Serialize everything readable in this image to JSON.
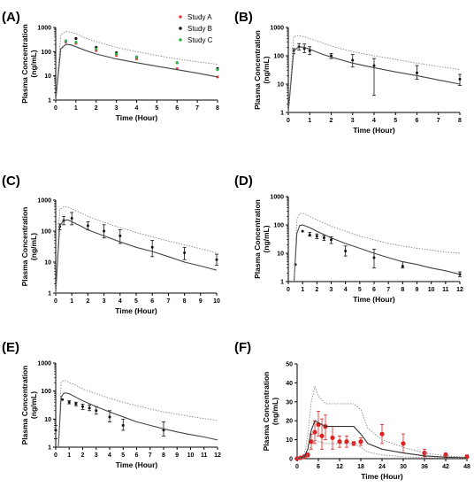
{
  "chart_data": [
    {
      "panel": "(A)",
      "type": "line",
      "xlabel": "Time (Hour)",
      "ylabel": [
        "Plasma Concentration",
        "(ng/mL)"
      ],
      "yscale": "log",
      "xlim": [
        0,
        8
      ],
      "ylim": [
        1,
        1000
      ],
      "xticks": [
        "0",
        "1",
        "2",
        "3",
        "4",
        "5",
        "6",
        "7",
        "8"
      ],
      "yticks": [
        "1",
        "10",
        "100",
        "1000"
      ],
      "legend": {
        "position": "top-right",
        "entries": [
          {
            "name": "Study A",
            "color": "#e8413c"
          },
          {
            "name": "Study B",
            "color": "#111111"
          },
          {
            "name": "Study C",
            "color": "#2db84a"
          }
        ]
      },
      "series": [
        {
          "name": "Study A",
          "kind": "points",
          "color": "#e8413c",
          "x": [
            0.5,
            1,
            2,
            3,
            4,
            6,
            8
          ],
          "y": [
            250,
            220,
            110,
            70,
            50,
            20,
            9
          ]
        },
        {
          "name": "Study B",
          "kind": "points",
          "color": "#111111",
          "x": [
            1,
            2,
            3,
            4,
            6,
            8
          ],
          "y": [
            350,
            150,
            90,
            60,
            35,
            20
          ]
        },
        {
          "name": "Study C",
          "kind": "points",
          "color": "#2db84a",
          "x": [
            0.5,
            1,
            2,
            3,
            4,
            6,
            8
          ],
          "y": [
            280,
            250,
            130,
            80,
            60,
            35,
            18
          ]
        },
        {
          "kind": "curve",
          "style": "solid",
          "color": "#444444",
          "x": [
            0,
            0.25,
            0.5,
            0.75,
            1,
            1.5,
            2,
            3,
            4,
            5,
            6,
            7,
            8
          ],
          "y": [
            1,
            130,
            200,
            190,
            160,
            110,
            80,
            50,
            35,
            25,
            18,
            13,
            9
          ]
        },
        {
          "kind": "curve",
          "style": "dotted",
          "color": "#888888",
          "x": [
            0,
            0.25,
            0.5,
            0.75,
            1,
            1.5,
            2,
            3,
            4,
            5,
            6,
            7,
            8
          ],
          "y": [
            1,
            500,
            680,
            640,
            540,
            360,
            260,
            150,
            100,
            70,
            50,
            38,
            30
          ]
        }
      ]
    },
    {
      "panel": "(B)",
      "type": "line",
      "xlabel": "Time (Hour)",
      "ylabel": [
        "Plasma Concentration",
        "(ng/mL)"
      ],
      "yscale": "log",
      "xlim": [
        0,
        8
      ],
      "ylim": [
        1,
        1000
      ],
      "xticks": [
        "0",
        "1",
        "2",
        "3",
        "4",
        "5",
        "6",
        "7",
        "8"
      ],
      "yticks": [
        "1",
        "10",
        "100",
        "1000"
      ],
      "series": [
        {
          "kind": "errorbar",
          "color": "#111111",
          "x": [
            0.25,
            0.5,
            0.75,
            1,
            2,
            3,
            4,
            6,
            8
          ],
          "y": [
            150,
            210,
            180,
            150,
            100,
            70,
            45,
            25,
            15
          ],
          "ylow": [
            120,
            160,
            130,
            110,
            80,
            40,
            4,
            15,
            9
          ],
          "yhigh": [
            180,
            270,
            260,
            210,
            120,
            110,
            80,
            45,
            22
          ]
        },
        {
          "kind": "curve",
          "style": "solid",
          "color": "#444444",
          "x": [
            0,
            0.25,
            0.5,
            0.75,
            1,
            1.5,
            2,
            3,
            4,
            5,
            6,
            7,
            8
          ],
          "y": [
            1,
            150,
            210,
            200,
            170,
            120,
            90,
            55,
            38,
            27,
            20,
            14,
            10
          ]
        },
        {
          "kind": "curve",
          "style": "dotted",
          "color": "#888888",
          "x": [
            0,
            0.25,
            0.5,
            0.75,
            1,
            1.5,
            2,
            3,
            4,
            5,
            6,
            7,
            8
          ],
          "y": [
            1,
            480,
            520,
            470,
            400,
            300,
            220,
            140,
            100,
            75,
            55,
            42,
            33
          ]
        }
      ]
    },
    {
      "panel": "(C)",
      "type": "line",
      "xlabel": "Time (Hour)",
      "ylabel": [
        "Plasma Concentration",
        "(ng/mL)"
      ],
      "yscale": "log",
      "xlim": [
        0,
        10
      ],
      "ylim": [
        1,
        1000
      ],
      "xticks": [
        "0",
        "1",
        "2",
        "3",
        "4",
        "5",
        "6",
        "7",
        "8",
        "9",
        "10"
      ],
      "yticks": [
        "1",
        "10",
        "100",
        "1000"
      ],
      "series": [
        {
          "kind": "errorbar",
          "color": "#111111",
          "x": [
            0.25,
            0.5,
            1,
            2,
            3,
            4,
            6,
            8,
            10
          ],
          "y": [
            140,
            220,
            260,
            150,
            100,
            70,
            30,
            20,
            12
          ],
          "ylow": [
            110,
            160,
            160,
            110,
            60,
            40,
            15,
            12,
            8
          ],
          "yhigh": [
            170,
            300,
            400,
            200,
            160,
            110,
            50,
            30,
            18
          ]
        },
        {
          "kind": "curve",
          "style": "solid",
          "color": "#444444",
          "x": [
            0,
            0.25,
            0.5,
            0.75,
            1,
            1.5,
            2,
            3,
            4,
            5,
            6,
            7,
            8,
            9,
            10
          ],
          "y": [
            1,
            150,
            220,
            230,
            200,
            150,
            110,
            70,
            45,
            30,
            22,
            15,
            10,
            7.5,
            5.5
          ]
        },
        {
          "kind": "curve",
          "style": "dotted",
          "color": "#888888",
          "x": [
            0,
            0.25,
            0.5,
            0.75,
            1,
            1.5,
            2,
            3,
            4,
            5,
            6,
            7,
            8,
            9,
            10
          ],
          "y": [
            1,
            500,
            620,
            600,
            520,
            400,
            300,
            190,
            130,
            90,
            65,
            48,
            36,
            27,
            20
          ]
        }
      ]
    },
    {
      "panel": "(D)",
      "type": "line",
      "xlabel": "Time (Hour)",
      "ylabel": [
        "Plasma Concentration",
        "(ng/mL)"
      ],
      "yscale": "log",
      "xlim": [
        0,
        12
      ],
      "ylim": [
        1,
        1000
      ],
      "xticks": [
        "0",
        "1",
        "2",
        "3",
        "4",
        "5",
        "6",
        "7",
        "8",
        "9",
        "10",
        "11",
        "12"
      ],
      "yticks": [
        "1",
        "10",
        "100",
        "1000"
      ],
      "series": [
        {
          "kind": "errorbar",
          "color": "#111111",
          "x": [
            0.5,
            1,
            1.5,
            2,
            2.5,
            3,
            4,
            6,
            8,
            12
          ],
          "y": [
            4,
            60,
            45,
            40,
            35,
            30,
            12,
            7,
            3.5,
            1.8
          ],
          "ylow": [
            4,
            60,
            40,
            33,
            28,
            22,
            8,
            3,
            3,
            1.5
          ],
          "yhigh": [
            4,
            60,
            55,
            48,
            42,
            38,
            18,
            14,
            5,
            2.2
          ]
        },
        {
          "kind": "curve",
          "style": "solid",
          "color": "#444444",
          "x": [
            0.4,
            0.6,
            0.8,
            1,
            1.5,
            2,
            3,
            4,
            5,
            6,
            7,
            8,
            9,
            10,
            11,
            12
          ],
          "y": [
            1,
            50,
            95,
            100,
            80,
            60,
            35,
            22,
            15,
            10,
            7,
            5,
            4,
            3,
            2.4,
            1.8
          ]
        },
        {
          "kind": "curve",
          "style": "dotted",
          "color": "#888888",
          "x": [
            0.4,
            0.6,
            0.8,
            1,
            1.5,
            2,
            3,
            4,
            5,
            6,
            7,
            8,
            9,
            10,
            11,
            12
          ],
          "y": [
            1,
            150,
            250,
            260,
            200,
            150,
            90,
            60,
            40,
            30,
            22,
            18,
            15,
            13,
            11,
            10
          ]
        }
      ]
    },
    {
      "panel": "(E)",
      "type": "line",
      "xlabel": "Time (Hour)",
      "ylabel": [
        "Plasma Concentration",
        "(ng/mL)"
      ],
      "yscale": "log",
      "xlim": [
        0,
        12
      ],
      "ylim": [
        1,
        1000
      ],
      "xticks": [
        "0",
        "1",
        "2",
        "3",
        "4",
        "5",
        "6",
        "7",
        "8",
        "9",
        "10",
        "11",
        "12"
      ],
      "yticks": [
        "1",
        "10",
        "100",
        "1000"
      ],
      "series": [
        {
          "kind": "errorbar",
          "color": "#111111",
          "x": [
            0,
            0.5,
            1,
            1.5,
            2,
            2.5,
            3,
            4,
            5,
            8
          ],
          "y": [
            4,
            50,
            40,
            35,
            28,
            25,
            20,
            12,
            6,
            4
          ],
          "ylow": [
            2,
            50,
            35,
            30,
            22,
            20,
            15,
            8,
            4,
            2.5
          ],
          "yhigh": [
            6,
            50,
            45,
            40,
            34,
            32,
            28,
            20,
            10,
            8
          ]
        },
        {
          "kind": "curve",
          "style": "solid",
          "color": "#444444",
          "x": [
            0.2,
            0.4,
            0.6,
            0.8,
            1,
            1.5,
            2,
            3,
            4,
            5,
            6,
            7,
            8,
            9,
            10,
            11,
            12
          ],
          "y": [
            1,
            60,
            85,
            85,
            80,
            60,
            45,
            28,
            18,
            12,
            8,
            6,
            4.5,
            3.5,
            2.8,
            2.3,
            1.8
          ]
        },
        {
          "kind": "curve",
          "style": "dotted",
          "color": "#888888",
          "x": [
            0.2,
            0.4,
            0.6,
            0.8,
            1,
            1.5,
            2,
            3,
            4,
            5,
            6,
            7,
            8,
            9,
            10,
            11,
            12
          ],
          "y": [
            1,
            200,
            240,
            230,
            200,
            160,
            120,
            80,
            55,
            40,
            30,
            23,
            18,
            15,
            12.5,
            10.5,
            9
          ]
        }
      ]
    },
    {
      "panel": "(F)",
      "type": "line",
      "xlabel": "Time (Hour)",
      "ylabel": [
        "Plasma Concentration",
        "(ng/mL)"
      ],
      "yscale": "linear",
      "xlim": [
        0,
        48
      ],
      "ylim": [
        0,
        50
      ],
      "xticks": [
        "0",
        "6",
        "12",
        "18",
        "24",
        "30",
        "36",
        "42",
        "48"
      ],
      "yticks": [
        "0",
        "10",
        "20",
        "30",
        "40",
        "50"
      ],
      "series": [
        {
          "kind": "errorbar",
          "color": "#dd2222",
          "x": [
            0,
            1,
            2,
            3,
            4,
            5,
            6,
            7,
            8,
            10,
            12,
            14,
            16,
            18,
            24,
            30,
            36,
            42,
            48
          ],
          "y": [
            0,
            0.5,
            1,
            2,
            9,
            14,
            18,
            12,
            17,
            11,
            9,
            9,
            8,
            9,
            13,
            8,
            3,
            2,
            1
          ],
          "ylow": [
            0,
            0.2,
            0.5,
            1,
            5,
            8,
            12,
            5,
            10,
            5,
            6,
            6,
            7,
            7,
            8,
            3,
            1,
            0.5,
            0.2
          ],
          "yhigh": [
            0,
            1,
            2,
            3,
            13,
            20,
            25,
            21,
            23,
            17,
            12,
            12,
            9,
            11,
            18,
            13,
            5,
            3,
            2
          ]
        },
        {
          "kind": "curve",
          "style": "solid",
          "color": "#333333",
          "x": [
            0,
            2,
            3,
            4,
            5,
            6,
            8,
            10,
            12,
            14,
            16,
            18,
            20,
            24,
            30,
            36,
            42,
            48
          ],
          "y": [
            0,
            1,
            5,
            15,
            20,
            19,
            17,
            17,
            17,
            17,
            17,
            13,
            8,
            5,
            3,
            1.5,
            0.8,
            0.4
          ]
        },
        {
          "kind": "curve",
          "style": "dotted",
          "color": "#888888",
          "x": [
            0,
            2,
            3,
            4,
            5,
            6,
            8,
            10,
            12,
            14,
            16,
            18,
            20,
            24,
            30,
            36,
            42,
            48
          ],
          "y": [
            0,
            2,
            12,
            30,
            38,
            33,
            29,
            29,
            29,
            29,
            29,
            26,
            16,
            10,
            6,
            3,
            1.5,
            0.8
          ]
        },
        {
          "kind": "curve",
          "style": "dotted",
          "color": "#888888",
          "x": [
            0,
            2,
            3,
            4,
            5,
            6,
            8,
            10,
            12,
            14,
            16,
            18,
            20,
            24,
            30,
            36,
            42,
            48
          ],
          "y": [
            0,
            0.5,
            2,
            7,
            10,
            9,
            8,
            8,
            8,
            8,
            8,
            6,
            3.5,
            2,
            1,
            0.5,
            0.3,
            0.1
          ]
        }
      ]
    }
  ]
}
